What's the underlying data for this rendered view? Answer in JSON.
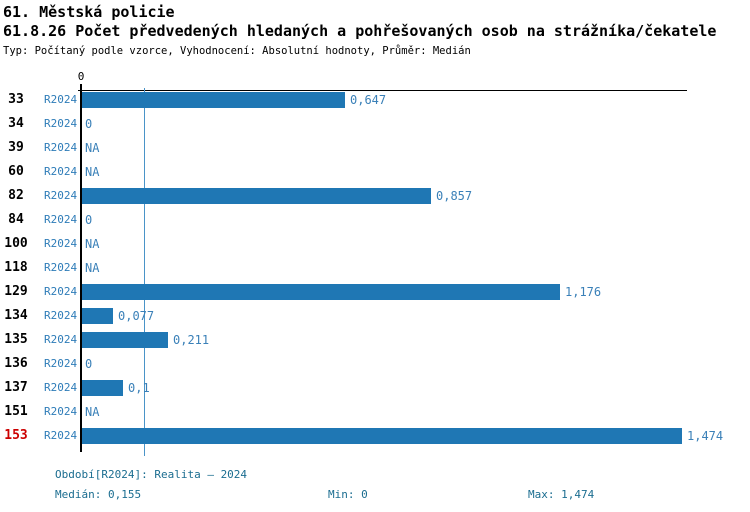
{
  "header": {
    "title": "61. Městská policie",
    "subtitle": "61.8.26 Počet předvedených hledaných a pohřešovaných osob na strážníka/čekatele",
    "meta": "Typ: Počítaný podle vzorce, Vyhodnocení: Absolutní hodnoty, Průměr: Medián"
  },
  "chart_data": {
    "type": "bar",
    "orientation": "horizontal",
    "title": "61.8.26 Počet předvedených hledaných a pohřešovaných osob na strážníka/čekatele",
    "series_label": "R2024",
    "categories": [
      "33",
      "34",
      "39",
      "60",
      "82",
      "84",
      "100",
      "118",
      "129",
      "134",
      "135",
      "136",
      "137",
      "151",
      "153"
    ],
    "values": [
      0.647,
      0,
      null,
      null,
      0.857,
      0,
      null,
      null,
      1.176,
      0.077,
      0.211,
      0,
      0.1,
      null,
      1.474
    ],
    "value_labels": [
      "0,647",
      "0",
      "NA",
      "NA",
      "0,857",
      "0",
      "NA",
      "NA",
      "1,176",
      "0,077",
      "0,211",
      "0",
      "0,1",
      "NA",
      "1,474"
    ],
    "highlighted_category": "153",
    "median": 0.155,
    "min": 0,
    "max": 1.474,
    "xlim": [
      0,
      1.49
    ],
    "x_tick_labels": [
      "0"
    ],
    "grid": false,
    "legend_position": "none"
  },
  "footer": {
    "period": "Období[R2024]: Realita – 2024",
    "median": "Medián: 0,155",
    "min": "Min: 0",
    "max": "Max: 1,474"
  },
  "colors": {
    "bar": "#1f77b4",
    "series_label": "#2e7cb8",
    "value_label": "#3a80b8",
    "median_line": "#4a94c8",
    "highlight": "#cc0000",
    "footer_text": "#1b6d90",
    "text": "#000000"
  }
}
